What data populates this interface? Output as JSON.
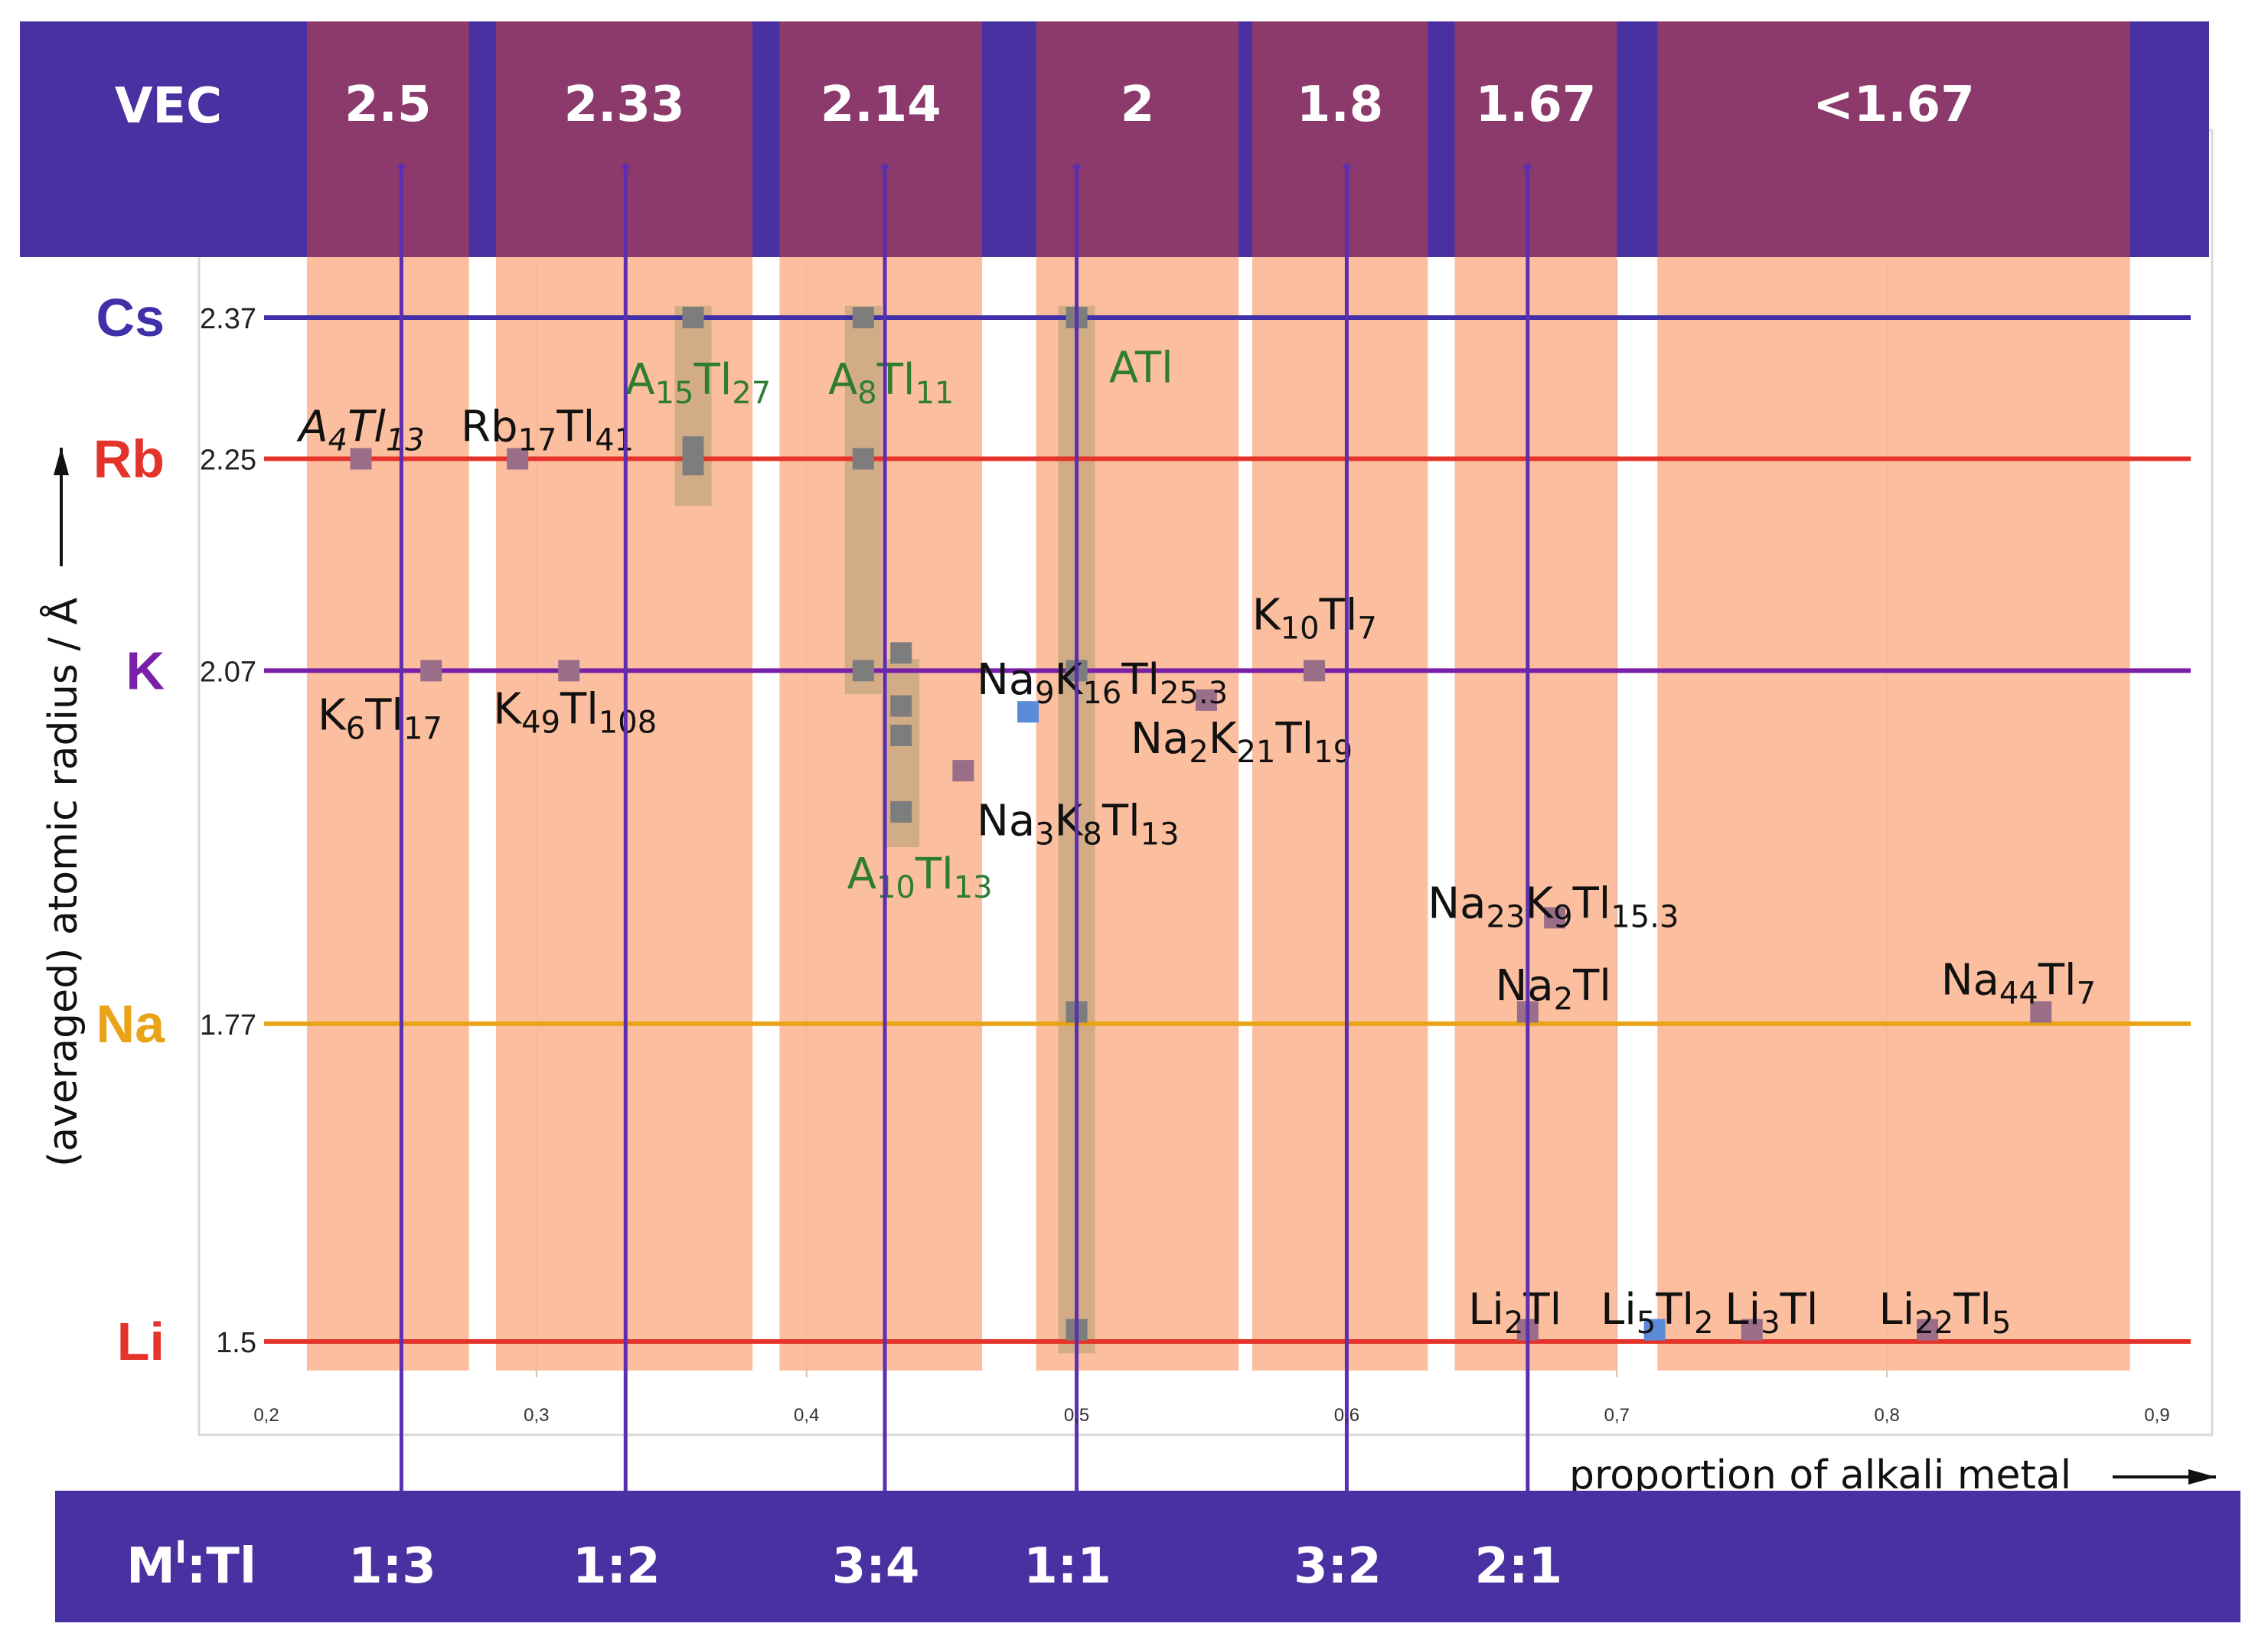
{
  "chart_data": {
    "type": "scatter",
    "title": "",
    "xlabel": "proportion of alkali metal",
    "ylabel": "(averaged) atomic radius / Å",
    "xlim": [
      0.2,
      0.9
    ],
    "x_ticks": [
      "0,2",
      "0,3",
      "0,4",
      "0,5",
      "0,6",
      "0,7",
      "0,8",
      "0,9"
    ],
    "vec_header": "VEC",
    "ratio_header": "M",
    "ratio_header_sup": "I",
    "ratio_header_tail": ":Tl",
    "vec_bands": [
      {
        "label": "2.5",
        "x_from": 0.215,
        "x_to": 0.275
      },
      {
        "label": "2.33",
        "x_from": 0.285,
        "x_to": 0.38
      },
      {
        "label": "2.14",
        "x_from": 0.39,
        "x_to": 0.465
      },
      {
        "label": "2",
        "x_from": 0.485,
        "x_to": 0.56
      },
      {
        "label": "1.8",
        "x_from": 0.565,
        "x_to": 0.63
      },
      {
        "label": "1.67",
        "x_from": 0.64,
        "x_to": 0.7
      },
      {
        "label": "<1.67",
        "x_from": 0.715,
        "x_to": 0.89
      }
    ],
    "ratios": [
      {
        "label": "1:3",
        "x": 0.25
      },
      {
        "label": "1:2",
        "x": 0.333
      },
      {
        "label": "3:4",
        "x": 0.429
      },
      {
        "label": "1:1",
        "x": 0.5
      },
      {
        "label": "3:2",
        "x": 0.6
      },
      {
        "label": "2:1",
        "x": 0.667
      }
    ],
    "elements": [
      {
        "symbol": "Cs",
        "radius": "2.37",
        "y": 2.37,
        "color": "#3f2fa8"
      },
      {
        "symbol": "Rb",
        "radius": "2.25",
        "y": 2.25,
        "color": "#e4332a"
      },
      {
        "symbol": "K",
        "radius": "2.07",
        "y": 2.07,
        "color": "#7a1fa8"
      },
      {
        "symbol": "Na",
        "radius": "1.77",
        "y": 1.77,
        "color": "#e8a317"
      },
      {
        "symbol": "Li",
        "radius": "1.5",
        "y": 1.5,
        "color": "#e4332a"
      }
    ],
    "group_highlights": [
      {
        "x": 0.358,
        "y_from": 2.21,
        "y_to": 2.38
      },
      {
        "x": 0.421,
        "y_from": 2.05,
        "y_to": 2.38
      },
      {
        "x": 0.435,
        "y_from": 1.92,
        "y_to": 2.08
      },
      {
        "x": 0.5,
        "y_from": 1.49,
        "y_to": 2.38
      }
    ],
    "points": [
      {
        "x": 0.235,
        "y": 2.25,
        "color": "#9a6e88"
      },
      {
        "x": 0.261,
        "y": 2.07,
        "color": "#9a6e88"
      },
      {
        "x": 0.293,
        "y": 2.25,
        "color": "#9a6e88"
      },
      {
        "x": 0.312,
        "y": 2.07,
        "color": "#9a6e88"
      },
      {
        "x": 0.358,
        "y": 2.37,
        "color": "#7d7d7d"
      },
      {
        "x": 0.358,
        "y": 2.26,
        "color": "#7d7d7d"
      },
      {
        "x": 0.358,
        "y": 2.245,
        "color": "#7d7d7d"
      },
      {
        "x": 0.421,
        "y": 2.37,
        "color": "#7d7d7d"
      },
      {
        "x": 0.421,
        "y": 2.25,
        "color": "#7d7d7d"
      },
      {
        "x": 0.421,
        "y": 2.07,
        "color": "#7d7d7d"
      },
      {
        "x": 0.435,
        "y": 2.085,
        "color": "#7d7d7d"
      },
      {
        "x": 0.435,
        "y": 2.04,
        "color": "#7d7d7d"
      },
      {
        "x": 0.435,
        "y": 2.015,
        "color": "#7d7d7d"
      },
      {
        "x": 0.435,
        "y": 1.95,
        "color": "#7d7d7d"
      },
      {
        "x": 0.458,
        "y": 1.985,
        "color": "#9a6e88"
      },
      {
        "x": 0.482,
        "y": 2.035,
        "color": "#5b8bd6"
      },
      {
        "x": 0.5,
        "y": 2.37,
        "color": "#7d7d7d"
      },
      {
        "x": 0.5,
        "y": 2.07,
        "color": "#7d7d7d"
      },
      {
        "x": 0.5,
        "y": 1.78,
        "color": "#7d7d7d"
      },
      {
        "x": 0.5,
        "y": 1.51,
        "color": "#7d7d7d"
      },
      {
        "x": 0.548,
        "y": 2.045,
        "color": "#9a6e88"
      },
      {
        "x": 0.588,
        "y": 2.07,
        "color": "#9a6e88"
      },
      {
        "x": 0.667,
        "y": 1.78,
        "color": "#9a6e88"
      },
      {
        "x": 0.677,
        "y": 1.86,
        "color": "#9a6e88"
      },
      {
        "x": 0.667,
        "y": 1.51,
        "color": "#9a6e88"
      },
      {
        "x": 0.714,
        "y": 1.51,
        "color": "#5b8bd6"
      },
      {
        "x": 0.75,
        "y": 1.51,
        "color": "#9a6e88"
      },
      {
        "x": 0.815,
        "y": 1.51,
        "color": "#9a6e88"
      },
      {
        "x": 0.857,
        "y": 1.78,
        "color": "#9a6e88"
      }
    ],
    "compounds": [
      {
        "name": "A4Tl13",
        "parts": [
          "A",
          "4",
          "Tl",
          "13"
        ],
        "x": 0.212,
        "y": 2.265,
        "style": "italic",
        "color": "black"
      },
      {
        "name": "Rb17Tl41",
        "parts": [
          "Rb",
          "17",
          "Tl",
          "41"
        ],
        "x": 0.272,
        "y": 2.265,
        "color": "black"
      },
      {
        "name": "A15Tl27",
        "parts": [
          "A",
          "15",
          "Tl",
          "27"
        ],
        "x": 0.333,
        "y": 2.305,
        "color": "green"
      },
      {
        "name": "A8Tl11",
        "parts": [
          "A",
          "8",
          "Tl",
          "11"
        ],
        "x": 0.408,
        "y": 2.305,
        "color": "green"
      },
      {
        "name": "ATl",
        "parts": [
          "ATl"
        ],
        "x": 0.512,
        "y": 2.315,
        "color": "green"
      },
      {
        "name": "K10Tl7",
        "parts": [
          "K",
          "10",
          "Tl",
          "7"
        ],
        "x": 0.565,
        "y": 2.105,
        "color": "black"
      },
      {
        "name": "K6Tl17",
        "parts": [
          "K",
          "6",
          "Tl",
          "17"
        ],
        "x": 0.219,
        "y": 2.02,
        "color": "black"
      },
      {
        "name": "K49Tl108",
        "parts": [
          "K",
          "49",
          "Tl",
          "108"
        ],
        "x": 0.284,
        "y": 2.025,
        "color": "black"
      },
      {
        "name": "Na9K16Tl25.3",
        "parts": [
          "Na",
          "9",
          "K",
          "16",
          "Tl",
          "25.3"
        ],
        "x": 0.463,
        "y": 2.05,
        "color": "black"
      },
      {
        "name": "Na2K21Tl19",
        "parts": [
          "Na",
          "2",
          "K",
          "21",
          "Tl",
          "19"
        ],
        "x": 0.52,
        "y": 2.0,
        "color": "black"
      },
      {
        "name": "Na3K8Tl13",
        "parts": [
          "Na",
          "3",
          "K",
          "8",
          "Tl",
          "13"
        ],
        "x": 0.463,
        "y": 1.93,
        "color": "black"
      },
      {
        "name": "A10Tl13",
        "parts": [
          "A",
          "10",
          "Tl",
          "13"
        ],
        "x": 0.415,
        "y": 1.885,
        "color": "green"
      },
      {
        "name": "Na23K9Tl15.3",
        "parts": [
          "Na",
          "23",
          "K",
          "9",
          "Tl",
          "15.3"
        ],
        "x": 0.63,
        "y": 1.86,
        "color": "black"
      },
      {
        "name": "Na2Tl",
        "parts": [
          "Na",
          "2",
          "Tl"
        ],
        "x": 0.655,
        "y": 1.79,
        "color": "black"
      },
      {
        "name": "Na44Tl7",
        "parts": [
          "Na",
          "44",
          "Tl",
          "7"
        ],
        "x": 0.82,
        "y": 1.795,
        "color": "black"
      },
      {
        "name": "Li2Tl",
        "parts": [
          "Li",
          "2",
          "Tl"
        ],
        "x": 0.645,
        "y": 1.515,
        "color": "black"
      },
      {
        "name": "Li5Tl2",
        "parts": [
          "Li",
          "5",
          "Tl",
          "2"
        ],
        "x": 0.694,
        "y": 1.515,
        "color": "black"
      },
      {
        "name": "Li3Tl",
        "parts": [
          "Li",
          "3",
          "Tl"
        ],
        "x": 0.74,
        "y": 1.515,
        "color": "black"
      },
      {
        "name": "Li22Tl5",
        "parts": [
          "Li",
          "22",
          "Tl",
          "5"
        ],
        "x": 0.797,
        "y": 1.515,
        "color": "black"
      }
    ]
  },
  "colors": {
    "header_bg": "#4a31a1",
    "band_top": "#8b3a6b",
    "band_body": "#fbb896",
    "highlight": "#c8a77f",
    "arrow": "#5b2fb0",
    "green_text": "#2e7d32"
  }
}
